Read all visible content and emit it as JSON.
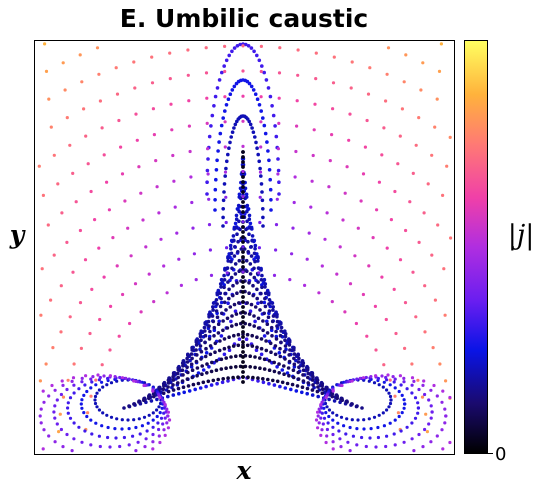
{
  "chart_data": {
    "type": "scatter",
    "title": "E. Umbilic caustic",
    "xlabel": "x",
    "ylabel": "y",
    "colorbar_label": "|j|",
    "colorbar_ticks": [
      "0"
    ],
    "colormap": [
      "#000000",
      "#1a0a6e",
      "#0a14e6",
      "#6a1ef0",
      "#b02ee0",
      "#f040a8",
      "#ff7a74",
      "#ffb23c",
      "#ffff60"
    ],
    "grid": false
  }
}
